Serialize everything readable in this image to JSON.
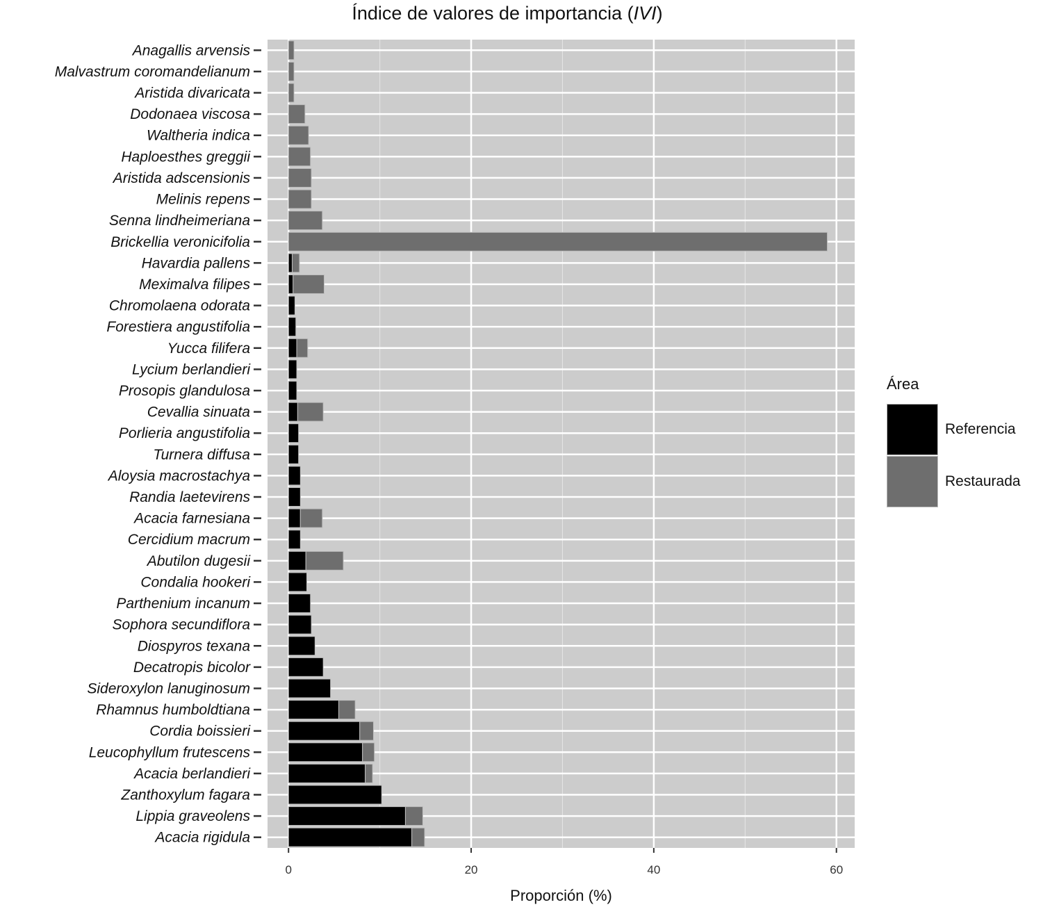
{
  "chart_data": {
    "type": "bar",
    "orientation": "horizontal",
    "stacked": true,
    "title": "Índice de valores de importancia (IVI)",
    "title_parts": {
      "prefix": "Índice de valores de importancia (",
      "italic": "IVI",
      "suffix": ")"
    },
    "xlabel": "Proporción (%)",
    "ylabel": "",
    "xlim": [
      -2.3,
      62
    ],
    "xticks": [
      0,
      20,
      40,
      60
    ],
    "grid": true,
    "legend": {
      "title": "Área",
      "position": "right"
    },
    "colors": {
      "Referencia": "#000000",
      "Restaurada": "#6e6e6e",
      "panel": "#cccccc",
      "grid": "#ffffff"
    },
    "categories": [
      "Anagallis arvensis",
      "Malvastrum coromandelianum",
      "Aristida divaricata",
      "Dodonaea viscosa",
      "Waltheria indica",
      "Haploesthes greggii",
      "Aristida adscensionis",
      "Melinis repens",
      "Senna lindheimeriana",
      "Brickellia veronicifolia",
      "Havardia pallens",
      "Meximalva filipes",
      "Chromolaena odorata",
      "Forestiera angustifolia",
      "Yucca filifera",
      "Lycium berlandieri",
      "Prosopis glandulosa",
      "Cevallia sinuata",
      "Porlieria angustifolia",
      "Turnera diffusa",
      "Aloysia macrostachya",
      "Randia laetevirens",
      "Acacia farnesiana",
      "Cercidium macrum",
      "Abutilon dugesii",
      "Condalia hookeri",
      "Parthenium incanum",
      "Sophora secundiflora",
      "Diospyros texana",
      "Decatropis bicolor",
      "Sideroxylon lanuginosum",
      "Rhamnus humboldtiana",
      "Cordia boissieri",
      "Leucophyllum frutescens",
      "Acacia berlandieri",
      "Zanthoxylum fagara",
      "Lippia graveolens",
      "Acacia rigidula"
    ],
    "series": [
      {
        "name": "Referencia",
        "values": [
          0,
          0,
          0,
          0,
          0,
          0,
          0,
          0,
          0,
          0,
          0.4,
          0.5,
          0.7,
          0.8,
          0.9,
          0.9,
          0.9,
          1.0,
          1.1,
          1.1,
          1.3,
          1.3,
          1.3,
          1.3,
          1.9,
          2.0,
          2.4,
          2.5,
          2.9,
          3.8,
          4.6,
          5.5,
          7.8,
          8.1,
          8.4,
          10.2,
          12.8,
          13.5
        ]
      },
      {
        "name": "Restaurada",
        "values": [
          0.6,
          0.6,
          0.6,
          1.8,
          2.2,
          2.4,
          2.5,
          2.5,
          3.7,
          59.0,
          0.8,
          3.4,
          0,
          0,
          1.2,
          0,
          0,
          2.8,
          0,
          0,
          0,
          0,
          2.4,
          0,
          4.1,
          0,
          0,
          0,
          0,
          0,
          0,
          1.8,
          1.5,
          1.3,
          0.8,
          0,
          1.9,
          1.4
        ]
      }
    ]
  }
}
